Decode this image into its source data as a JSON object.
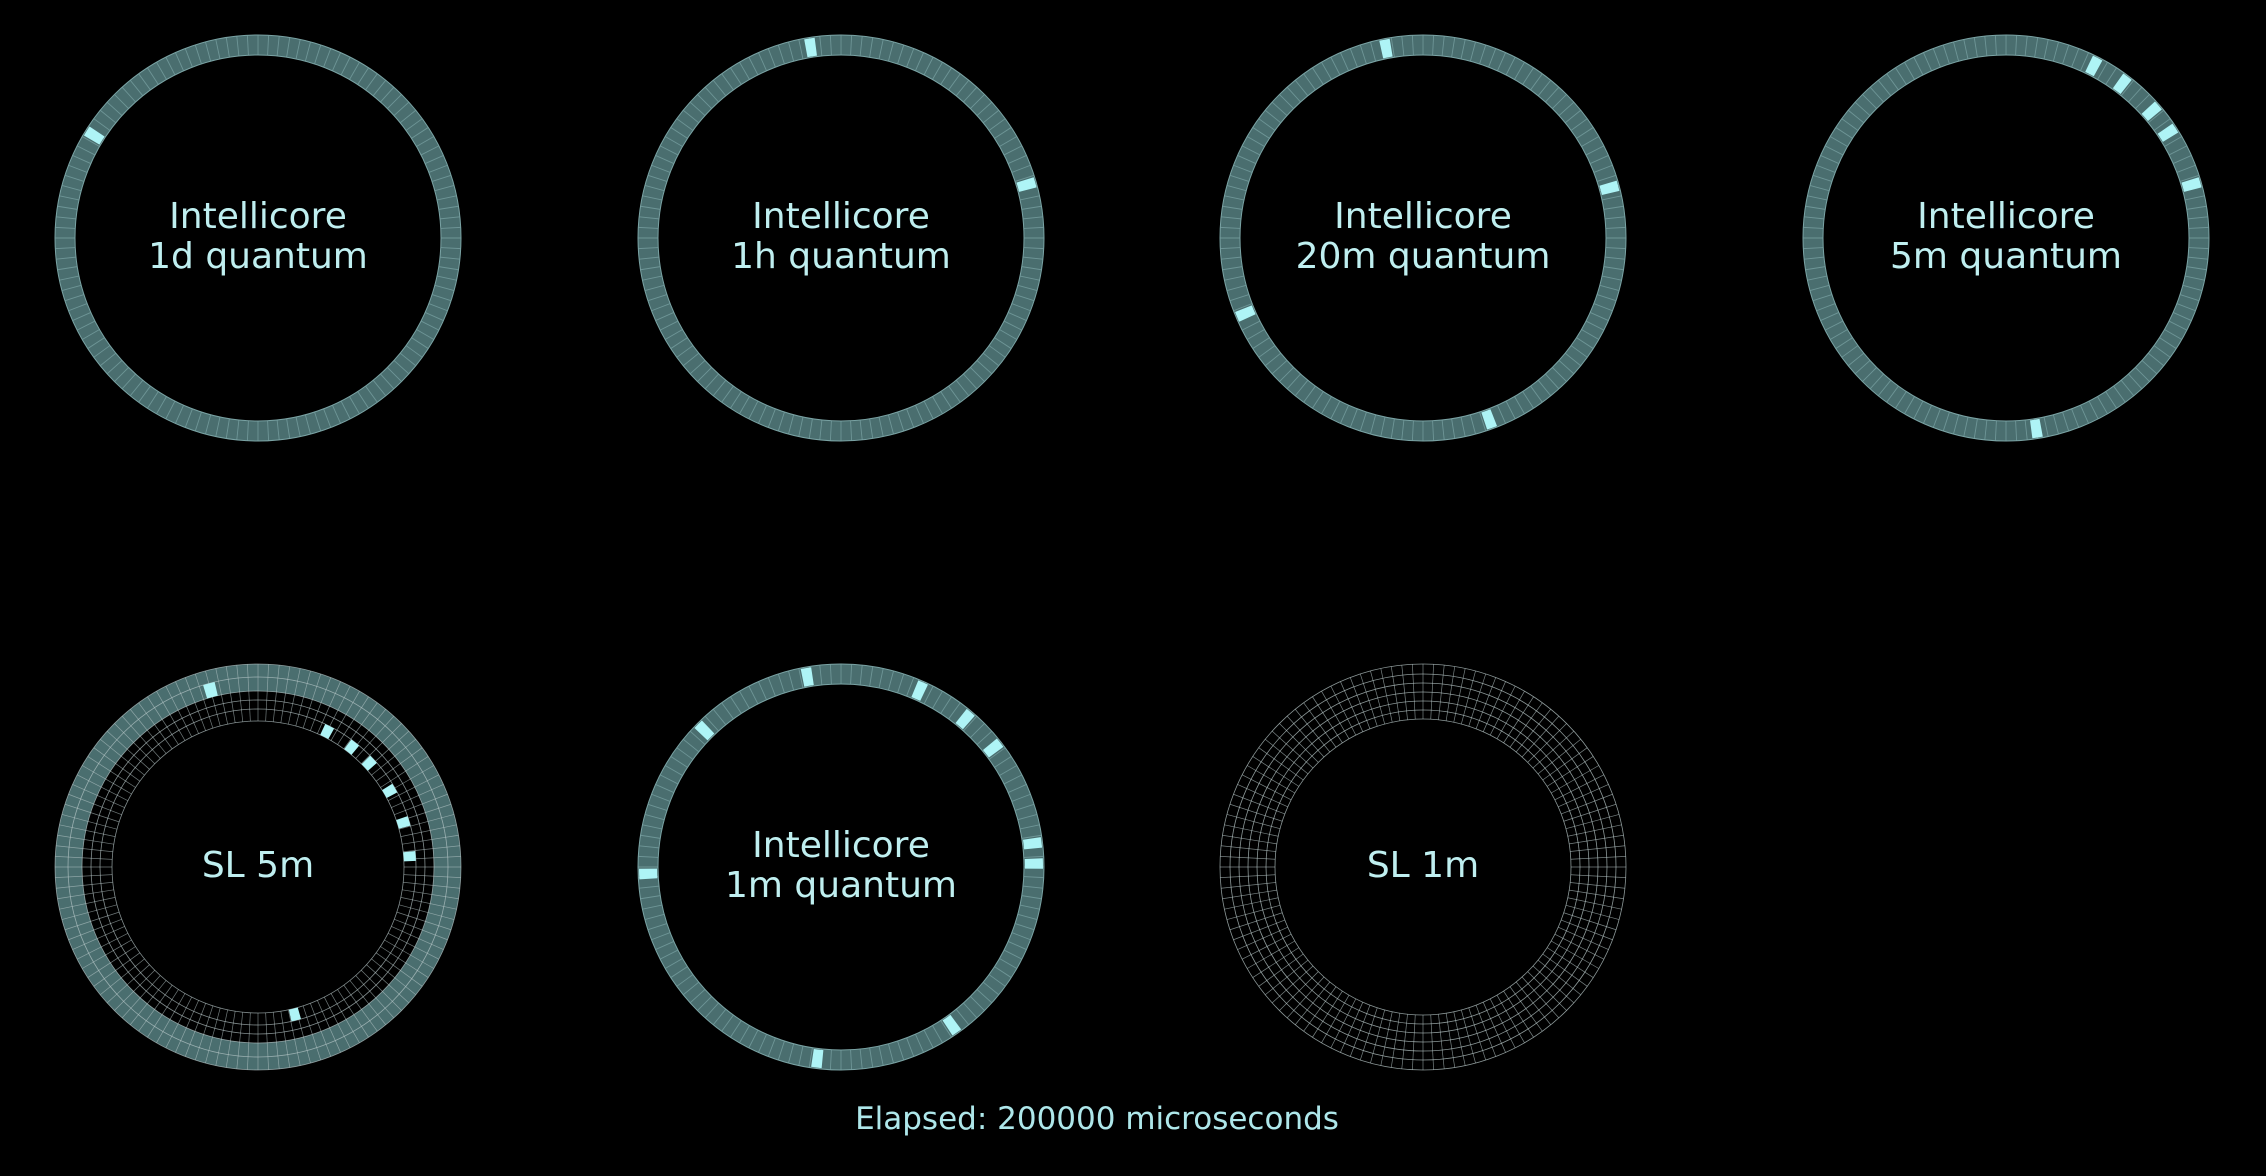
{
  "colors": {
    "background": "#000000",
    "ring_fill": "#4a6e6f",
    "ring_line": "#7aa3a4",
    "grid_line": "#b9c9ca",
    "highlight": "#aef4f6",
    "text": "#bfeff0"
  },
  "rings": [
    {
      "id": "intellicore-1d",
      "title_line1": "Intellicore",
      "title_line2": "1d quantum",
      "style": "solid",
      "segments": 120,
      "highlight_angles": [
        -58
      ]
    },
    {
      "id": "intellicore-1h",
      "title_line1": "Intellicore",
      "title_line2": "1h quantum",
      "style": "solid",
      "segments": 120,
      "highlight_angles": [
        -9,
        74
      ]
    },
    {
      "id": "intellicore-20m",
      "title_line1": "Intellicore",
      "title_line2": "20m quantum",
      "style": "solid",
      "segments": 120,
      "highlight_angles": [
        -11,
        75,
        160,
        247
      ]
    },
    {
      "id": "intellicore-5m",
      "title_line1": "Intellicore",
      "title_line2": "5m quantum",
      "style": "solid",
      "segments": 120,
      "highlight_angles": [
        27,
        37,
        49,
        57,
        74,
        171
      ]
    },
    {
      "id": "sl-5m",
      "title_line1": "SL 5m",
      "title_line2": "",
      "style": "multi-track",
      "segments": 120,
      "highlight_marks": [
        {
          "angle": -15,
          "track": 1
        },
        {
          "angle": 27,
          "track": 0
        },
        {
          "angle": 38,
          "track": 0
        },
        {
          "angle": 47,
          "track": 0
        },
        {
          "angle": 60,
          "track": 0
        },
        {
          "angle": 73,
          "track": 0
        },
        {
          "angle": 86,
          "track": 0
        },
        {
          "angle": 166,
          "track": 0
        }
      ]
    },
    {
      "id": "intellicore-1m",
      "title_line1": "Intellicore",
      "title_line2": "1m quantum",
      "style": "solid",
      "segments": 120,
      "highlight_angles": [
        -10,
        24,
        40,
        52,
        83,
        89,
        145,
        187,
        -92,
        -45
      ]
    },
    {
      "id": "sl-1m",
      "title_line1": "SL 1m",
      "title_line2": "",
      "style": "grid-only",
      "segments": 120,
      "highlight_angles": []
    }
  ],
  "footer": {
    "text": "Elapsed: 200000 microseconds"
  }
}
